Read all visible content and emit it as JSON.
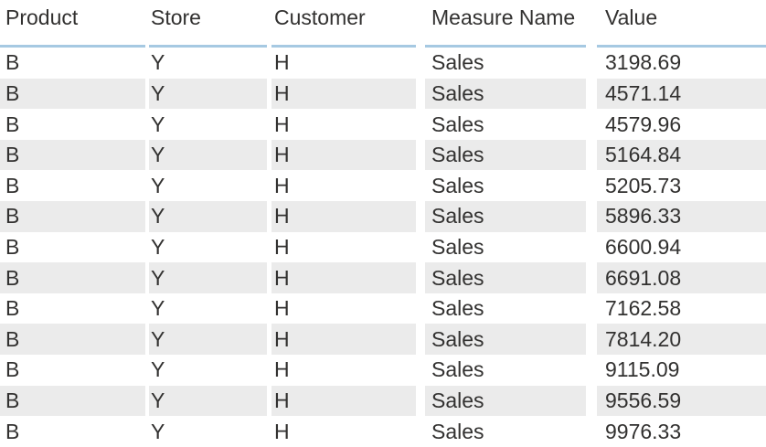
{
  "chart_data": {
    "type": "table",
    "columns": [
      "Product",
      "Store",
      "Customer",
      "Measure Name",
      "Value"
    ],
    "rows": [
      [
        "B",
        "Y",
        "H",
        "Sales",
        "3198.69"
      ],
      [
        "B",
        "Y",
        "H",
        "Sales",
        "4571.14"
      ],
      [
        "B",
        "Y",
        "H",
        "Sales",
        "4579.96"
      ],
      [
        "B",
        "Y",
        "H",
        "Sales",
        "5164.84"
      ],
      [
        "B",
        "Y",
        "H",
        "Sales",
        "5205.73"
      ],
      [
        "B",
        "Y",
        "H",
        "Sales",
        "5896.33"
      ],
      [
        "B",
        "Y",
        "H",
        "Sales",
        "6600.94"
      ],
      [
        "B",
        "Y",
        "H",
        "Sales",
        "6691.08"
      ],
      [
        "B",
        "Y",
        "H",
        "Sales",
        "7162.58"
      ],
      [
        "B",
        "Y",
        "H",
        "Sales",
        "7814.20"
      ],
      [
        "B",
        "Y",
        "H",
        "Sales",
        "9115.09"
      ],
      [
        "B",
        "Y",
        "H",
        "Sales",
        "9556.59"
      ],
      [
        "B",
        "Y",
        "H",
        "Sales",
        "9976.33"
      ]
    ],
    "title": "",
    "legend": "none",
    "value_alignment": "left",
    "banding": "even-rows"
  },
  "colors": {
    "banding": "#ebebeb",
    "header_underline": "#a6c9e2",
    "text": "#323130",
    "background": "#ffffff"
  }
}
